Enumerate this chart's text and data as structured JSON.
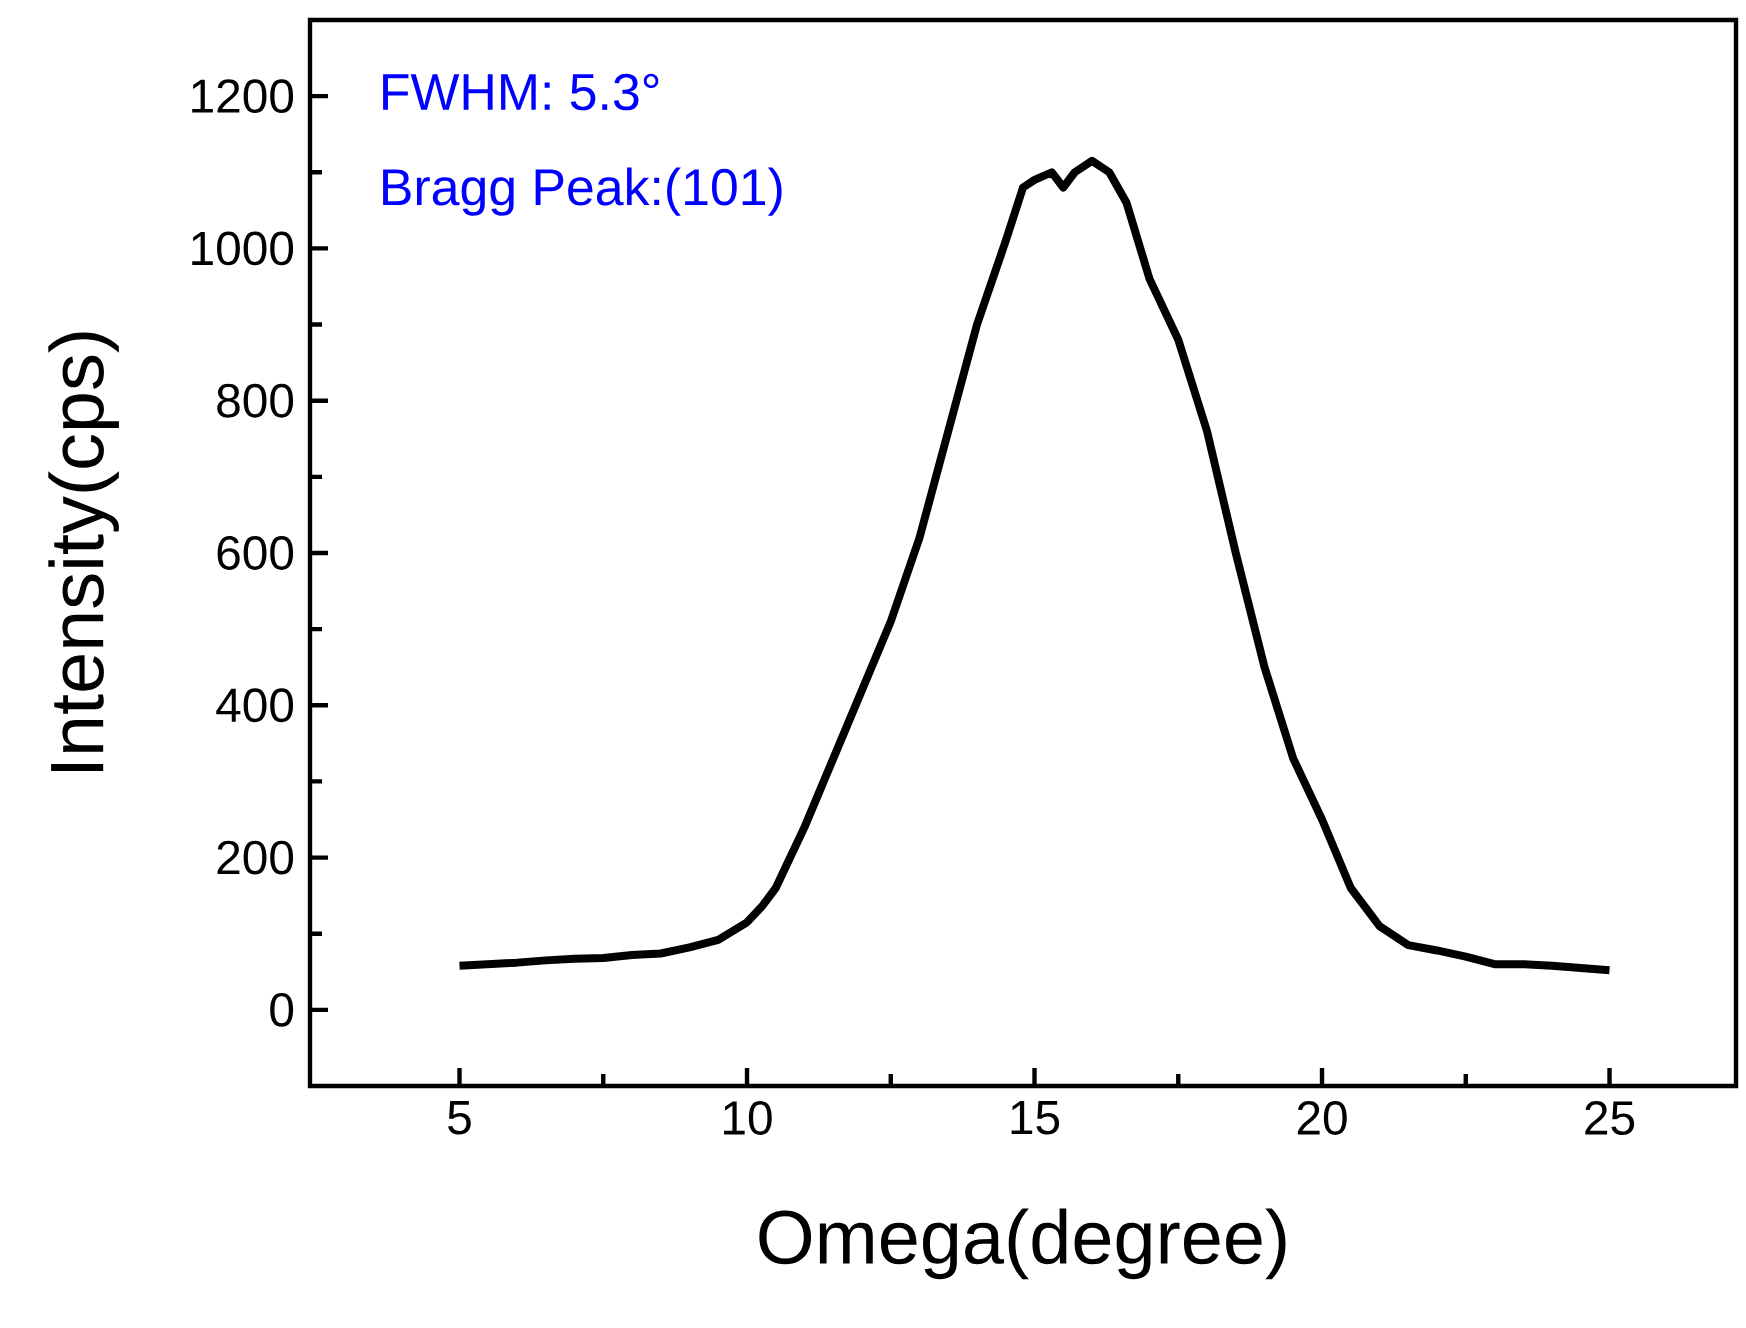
{
  "chart_data": {
    "type": "line",
    "xlabel": "Omega(degree)",
    "ylabel": "Intensity(cps)",
    "annotations": [
      "FWHM: 5.3°",
      "Bragg Peak:(101)"
    ],
    "x": [
      5.0,
      5.5,
      6.0,
      6.5,
      7.0,
      7.5,
      8.0,
      8.5,
      9.0,
      9.5,
      10.0,
      10.25,
      10.5,
      10.75,
      11.0,
      11.25,
      11.5,
      12.0,
      12.5,
      13.0,
      13.5,
      14.0,
      14.5,
      14.8,
      15.0,
      15.3,
      15.5,
      15.7,
      16.0,
      16.3,
      16.6,
      17.0,
      17.5,
      18.0,
      18.5,
      19.0,
      19.5,
      20.0,
      20.5,
      21.0,
      21.5,
      22.0,
      22.5,
      23.0,
      23.5,
      24.0,
      24.5,
      25.0
    ],
    "series": [
      {
        "color": "#000000",
        "values": [
          58,
          60,
          62,
          65,
          67,
          68,
          72,
          74,
          82,
          92,
          115,
          135,
          160,
          200,
          240,
          285,
          330,
          420,
          510,
          620,
          760,
          900,
          1010,
          1080,
          1090,
          1100,
          1080,
          1100,
          1115,
          1100,
          1060,
          960,
          880,
          760,
          600,
          450,
          330,
          250,
          160,
          110,
          85,
          78,
          70,
          60,
          60,
          58,
          55,
          52
        ]
      }
    ],
    "xlim": [
      2.4,
      27.2
    ],
    "ylim": [
      -100,
      1300
    ],
    "xticks": [
      5,
      10,
      15,
      20,
      25
    ],
    "yticks": [
      0,
      200,
      400,
      600,
      800,
      1000,
      1200
    ],
    "grid": false,
    "marker": "none",
    "line_style": "solid"
  }
}
